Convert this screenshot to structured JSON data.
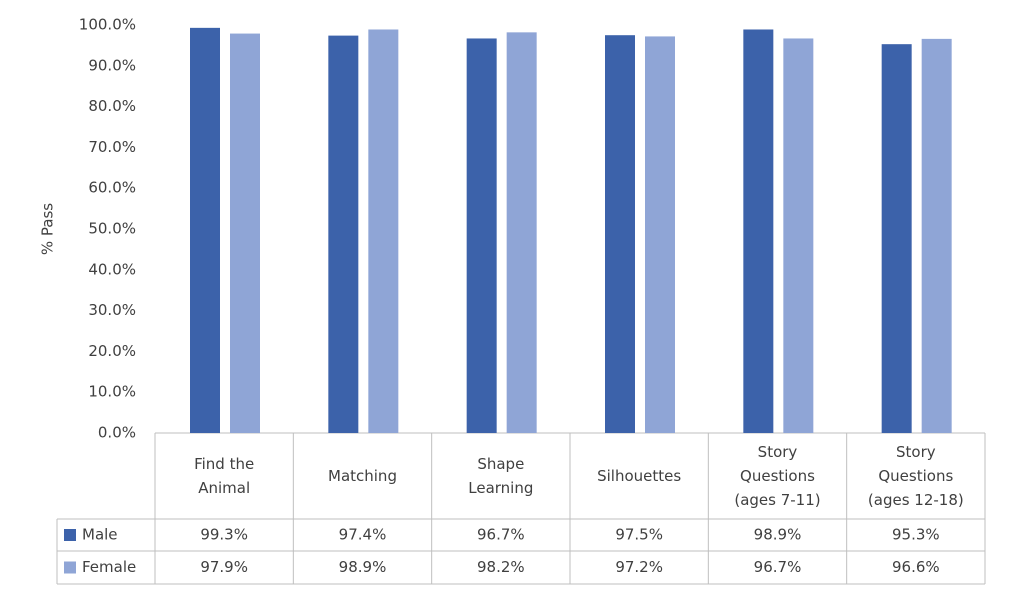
{
  "chart_data": {
    "type": "bar",
    "ylabel": "% Pass",
    "categories": [
      "Find the Animal",
      "Matching",
      "Shape Learning",
      "Silhouettes",
      "Story Questions (ages 7-11)",
      "Story Questions (ages 12-18)"
    ],
    "series": [
      {
        "name": "Male",
        "color": "#3c62aa",
        "values": [
          99.3,
          97.4,
          96.7,
          97.5,
          98.9,
          95.3
        ],
        "value_labels": [
          "99.3%",
          "97.4%",
          "96.7%",
          "97.5%",
          "98.9%",
          "95.3%"
        ]
      },
      {
        "name": "Female",
        "color": "#8fa5d6",
        "values": [
          97.9,
          98.9,
          98.2,
          97.2,
          96.7,
          96.6
        ],
        "value_labels": [
          "97.9%",
          "98.9%",
          "98.2%",
          "97.2%",
          "96.7%",
          "96.6%"
        ]
      }
    ],
    "ylim": [
      0,
      100
    ],
    "yticks": [
      {
        "value": 0,
        "label": "0.0%"
      },
      {
        "value": 10,
        "label": "10.0%"
      },
      {
        "value": 20,
        "label": "20.0%"
      },
      {
        "value": 30,
        "label": "30.0%"
      },
      {
        "value": 40,
        "label": "40.0%"
      },
      {
        "value": 50,
        "label": "50.0%"
      },
      {
        "value": 60,
        "label": "60.0%"
      },
      {
        "value": 70,
        "label": "70.0%"
      },
      {
        "value": 80,
        "label": "80.0%"
      },
      {
        "value": 90,
        "label": "90.0%"
      },
      {
        "value": 100,
        "label": "100.0%"
      }
    ],
    "grid": false
  }
}
